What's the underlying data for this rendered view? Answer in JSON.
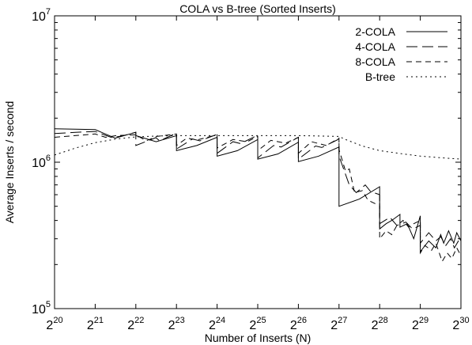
{
  "chart_data": {
    "type": "line",
    "title": "COLA vs B-tree (Sorted Inserts)",
    "xlabel": "Number of Inserts (N)",
    "ylabel": "Average Inserts / second",
    "x_scale": "log2",
    "y_scale": "log10",
    "xlim": [
      1048576,
      1073741824
    ],
    "ylim": [
      100000,
      10000000
    ],
    "x_ticks": [
      {
        "value": 1048576,
        "base": "2",
        "exp": "20"
      },
      {
        "value": 2097152,
        "base": "2",
        "exp": "21"
      },
      {
        "value": 4194304,
        "base": "2",
        "exp": "22"
      },
      {
        "value": 8388608,
        "base": "2",
        "exp": "23"
      },
      {
        "value": 16777216,
        "base": "2",
        "exp": "24"
      },
      {
        "value": 33554432,
        "base": "2",
        "exp": "25"
      },
      {
        "value": 67108864,
        "base": "2",
        "exp": "26"
      },
      {
        "value": 134217728,
        "base": "2",
        "exp": "27"
      },
      {
        "value": 268435456,
        "base": "2",
        "exp": "28"
      },
      {
        "value": 536870912,
        "base": "2",
        "exp": "29"
      },
      {
        "value": 1073741824,
        "base": "2",
        "exp": "30"
      }
    ],
    "y_ticks": [
      {
        "value": 100000,
        "base": "10",
        "exp": "5"
      },
      {
        "value": 1000000,
        "base": "10",
        "exp": "6"
      },
      {
        "value": 10000000,
        "base": "10",
        "exp": "7"
      }
    ],
    "grid": false,
    "legend_position": "top-right",
    "series": [
      {
        "name": "2-COLA",
        "dash": "none",
        "x": [
          1048576,
          2097152,
          2950000,
          4194304,
          4194304,
          5930000,
          8388608,
          8388608,
          11860000,
          16777216,
          16777216,
          23730000,
          33554432,
          33554432,
          47450000,
          67108864,
          67108864,
          94900000,
          134217728,
          134217728,
          189800000,
          268435456,
          268435456,
          300000000,
          330000000,
          379600000,
          379600000,
          430000000,
          480000000,
          536870912,
          536870912,
          620000000,
          700000000,
          760000000,
          800000000,
          870000000,
          950000000,
          1000000000,
          1073741824
        ],
        "values": [
          1690000,
          1670000,
          1460000,
          1600000,
          1520000,
          1380000,
          1520000,
          1200000,
          1300000,
          1480000,
          1100000,
          1200000,
          1430000,
          1050000,
          1140000,
          1370000,
          1010000,
          1100000,
          1270000,
          500000,
          560000,
          680000,
          350000,
          380000,
          400000,
          440000,
          360000,
          380000,
          300000,
          430000,
          245000,
          290000,
          260000,
          320000,
          280000,
          340000,
          280000,
          330000,
          290000
        ]
      },
      {
        "name": "4-COLA",
        "dash": "14,6",
        "x": [
          1048576,
          1500000,
          2097152,
          2800000,
          3400000,
          4194304,
          4194304,
          5900000,
          6300000,
          8388608,
          8388608,
          11000000,
          12500000,
          16777216,
          16777216,
          22000000,
          25000000,
          33554432,
          33554432,
          44000000,
          50000000,
          67108864,
          67108864,
          90000000,
          100000000,
          134217728,
          134217728,
          160000000,
          180000000,
          210000000,
          230000000,
          268435456,
          268435456,
          320000000,
          360000000,
          420000000,
          470000000,
          536870912,
          536870912,
          620000000,
          700000000,
          760000000,
          830000000,
          900000000,
          960000000,
          1073741824
        ],
        "values": [
          1570000,
          1600000,
          1620000,
          1470000,
          1520000,
          1600000,
          1300000,
          1470000,
          1400000,
          1580000,
          1230000,
          1440000,
          1400000,
          1550000,
          1150000,
          1380000,
          1340000,
          1530000,
          1070000,
          1300000,
          1270000,
          1480000,
          1050000,
          1290000,
          1260000,
          1440000,
          1100000,
          700000,
          620000,
          700000,
          630000,
          600000,
          380000,
          420000,
          370000,
          390000,
          350000,
          370000,
          280000,
          330000,
          290000,
          310000,
          270000,
          300000,
          260000,
          310000
        ]
      },
      {
        "name": "8-COLA",
        "dash": "7,5",
        "x": [
          1048576,
          2097152,
          2500000,
          3000000,
          4194304,
          5000000,
          6000000,
          8388608,
          8388608,
          10000000,
          12000000,
          16777216,
          16777216,
          22000000,
          28000000,
          33554432,
          33554432,
          42000000,
          54000000,
          67108864,
          67108864,
          84000000,
          108000000,
          134217728,
          134217728,
          150000000,
          160000000,
          175000000,
          200000000,
          220000000,
          250000000,
          268435456,
          268435456,
          300000000,
          330000000,
          360000000,
          400000000,
          440000000,
          480000000,
          536870912,
          536870912,
          580000000,
          650000000,
          700000000,
          780000000,
          850000000,
          920000000,
          1000000000,
          1073741824
        ],
        "values": [
          1480000,
          1560000,
          1480000,
          1520000,
          1540000,
          1400000,
          1500000,
          1560000,
          1300000,
          1460000,
          1420000,
          1540000,
          1250000,
          1430000,
          1380000,
          1500000,
          1200000,
          1410000,
          1350000,
          1480000,
          1150000,
          1380000,
          1300000,
          1460000,
          1220000,
          870000,
          900000,
          620000,
          640000,
          550000,
          520000,
          520000,
          300000,
          340000,
          320000,
          370000,
          400000,
          360000,
          380000,
          400000,
          240000,
          270000,
          250000,
          280000,
          210000,
          240000,
          220000,
          260000,
          230000
        ]
      },
      {
        "name": "B-tree",
        "dash": "2,4",
        "x": [
          1048576,
          1500000,
          2097152,
          3000000,
          4194304,
          6000000,
          8388608,
          16777216,
          33554432,
          67108864,
          134217728,
          150000000,
          200000000,
          268435456,
          400000000,
          536870912,
          800000000,
          1073741824
        ],
        "values": [
          1120000,
          1250000,
          1360000,
          1440000,
          1490000,
          1510000,
          1520000,
          1520000,
          1520000,
          1520000,
          1500000,
          1430000,
          1290000,
          1200000,
          1140000,
          1100000,
          1070000,
          1050000
        ]
      }
    ]
  }
}
